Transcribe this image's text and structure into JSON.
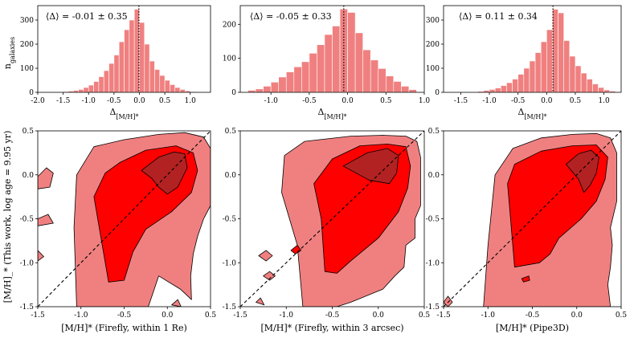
{
  "figure": {
    "shared_ylabel_hist": "n_galaxies",
    "shared_ylabel_contour": "[M/H]_* (This work, log age = 9.95 yr)"
  },
  "colors": {
    "hist_fill": "#f08080",
    "hist_edge": "#ffffff",
    "contour_outer": "#f08080",
    "contour_middle": "#ff0000",
    "contour_inner": "#b22222",
    "contour_line": "#000000"
  },
  "chart_data": [
    {
      "type": "bar",
      "panel": "hist-1",
      "annotation": "⟨Δ⟩ = -0.01 ± 0.35",
      "xlabel": "Δ[M/H]*",
      "ylabel": "n_galaxies",
      "xlim": [
        -2.0,
        1.4
      ],
      "ylim": [
        0,
        360
      ],
      "xticks": [
        "-2.0",
        "-1.5",
        "-1.0",
        "-0.5",
        "0.0",
        "0.5",
        "1.0"
      ],
      "xtick_values": [
        -2.0,
        -1.5,
        -1.0,
        -0.5,
        0.0,
        0.5,
        1.0
      ],
      "yticks": [
        "0",
        "100",
        "200",
        "300"
      ],
      "ytick_values": [
        0,
        100,
        200,
        300
      ],
      "vline": -0.01,
      "bin_edges": [
        -1.5,
        -1.4,
        -1.3,
        -1.2,
        -1.1,
        -1.0,
        -0.9,
        -0.8,
        -0.7,
        -0.6,
        -0.5,
        -0.4,
        -0.3,
        -0.2,
        -0.1,
        0.0,
        0.1,
        0.2,
        0.3,
        0.4,
        0.5,
        0.6,
        0.7,
        0.8,
        0.9,
        1.0,
        1.1
      ],
      "values": [
        3,
        5,
        8,
        12,
        20,
        30,
        45,
        65,
        90,
        120,
        155,
        210,
        260,
        300,
        345,
        290,
        200,
        130,
        95,
        70,
        50,
        32,
        20,
        12,
        6,
        3
      ]
    },
    {
      "type": "bar",
      "panel": "hist-2",
      "annotation": "⟨Δ⟩ = -0.05 ± 0.33",
      "xlabel": "Δ[M/H]*",
      "ylabel": "",
      "xlim": [
        -1.4,
        1.0
      ],
      "ylim": [
        0,
        255
      ],
      "xticks": [
        "-1.0",
        "-0.5",
        "0.0",
        "0.5",
        "1.0"
      ],
      "xtick_values": [
        -1.0,
        -0.5,
        0.0,
        0.5,
        1.0
      ],
      "yticks": [
        "0",
        "100",
        "200"
      ],
      "ytick_values": [
        0,
        100,
        200
      ],
      "vline": -0.05,
      "bin_edges": [
        -1.3,
        -1.2,
        -1.1,
        -1.0,
        -0.9,
        -0.8,
        -0.7,
        -0.6,
        -0.5,
        -0.4,
        -0.3,
        -0.2,
        -0.1,
        0.0,
        0.1,
        0.2,
        0.3,
        0.4,
        0.5,
        0.6,
        0.7,
        0.8,
        0.9
      ],
      "values": [
        6,
        10,
        18,
        30,
        45,
        60,
        75,
        90,
        115,
        140,
        170,
        195,
        245,
        235,
        175,
        125,
        95,
        70,
        48,
        32,
        18,
        8
      ]
    },
    {
      "type": "bar",
      "panel": "hist-3",
      "annotation": "⟨Δ⟩ = 0.11 ± 0.34",
      "xlabel": "Δ[M/H]*",
      "ylabel": "",
      "xlim": [
        -1.8,
        1.3
      ],
      "ylim": [
        0,
        360
      ],
      "xticks": [
        "-1.5",
        "-1.0",
        "-0.5",
        "0.0",
        "0.5",
        "1.0"
      ],
      "xtick_values": [
        -1.5,
        -1.0,
        -0.5,
        0.0,
        0.5,
        1.0
      ],
      "yticks": [
        "0",
        "100",
        "200",
        "300"
      ],
      "ytick_values": [
        0,
        100,
        200,
        300
      ],
      "vline": 0.11,
      "bin_edges": [
        -1.2,
        -1.1,
        -1.0,
        -0.9,
        -0.8,
        -0.7,
        -0.6,
        -0.5,
        -0.4,
        -0.3,
        -0.2,
        -0.1,
        0.0,
        0.1,
        0.2,
        0.3,
        0.4,
        0.5,
        0.6,
        0.7,
        0.8,
        0.9,
        1.0,
        1.1,
        1.2
      ],
      "values": [
        4,
        8,
        12,
        18,
        28,
        40,
        55,
        75,
        100,
        130,
        165,
        210,
        260,
        345,
        330,
        215,
        150,
        110,
        80,
        55,
        35,
        20,
        10,
        5
      ]
    },
    {
      "type": "contour",
      "panel": "contour-1",
      "xlabel": "[M/H]* (Firefly, within 1 Re)",
      "ylabel": "[M/H]* (This work, log age = 9.95 yr)",
      "xlim": [
        -1.5,
        0.5
      ],
      "ylim": [
        -1.5,
        0.5
      ],
      "xticks": [
        "-1.5",
        "-1.0",
        "-0.5",
        "0.0",
        "0.5"
      ],
      "xtick_values": [
        -1.5,
        -1.0,
        -0.5,
        0.0,
        0.5
      ],
      "yticks": [
        "-1.5",
        "-1.0",
        "-0.5",
        "0.0",
        "0.5"
      ],
      "ytick_values": [
        -1.5,
        -1.0,
        -0.5,
        0.0,
        0.5
      ],
      "levels": [
        {
          "name": "outer",
          "polygons": [
            [
              [
                -1.05,
                -1.5
              ],
              [
                -1.08,
                -0.6
              ],
              [
                -1.05,
                0.0
              ],
              [
                -0.85,
                0.32
              ],
              [
                -0.5,
                0.4
              ],
              [
                -0.1,
                0.46
              ],
              [
                0.2,
                0.48
              ],
              [
                0.42,
                0.43
              ],
              [
                0.5,
                0.3
              ],
              [
                0.5,
                -0.35
              ],
              [
                0.42,
                -0.5
              ],
              [
                0.35,
                -0.7
              ],
              [
                0.3,
                -0.9
              ],
              [
                0.27,
                -1.15
              ],
              [
                0.28,
                -1.42
              ],
              [
                0.15,
                -1.3
              ],
              [
                -0.1,
                -1.15
              ],
              [
                -0.22,
                -1.5
              ]
            ],
            [
              [
                -1.5,
                -0.02
              ],
              [
                -1.4,
                0.08
              ],
              [
                -1.32,
                0.02
              ],
              [
                -1.36,
                -0.14
              ],
              [
                -1.5,
                -0.16
              ]
            ],
            [
              [
                -1.5,
                -0.5
              ],
              [
                -1.38,
                -0.45
              ],
              [
                -1.32,
                -0.55
              ],
              [
                -1.5,
                -0.58
              ]
            ],
            [
              [
                -1.5,
                -0.86
              ],
              [
                -1.43,
                -0.93
              ],
              [
                -1.5,
                -0.98
              ]
            ],
            [
              [
                0.05,
                -1.48
              ],
              [
                0.12,
                -1.42
              ],
              [
                0.16,
                -1.5
              ]
            ]
          ]
        },
        {
          "name": "middle",
          "polygons": [
            [
              [
                -0.68,
                -1.22
              ],
              [
                -0.78,
                -0.65
              ],
              [
                -0.85,
                -0.25
              ],
              [
                -0.72,
                0.02
              ],
              [
                -0.55,
                0.14
              ],
              [
                -0.25,
                0.28
              ],
              [
                0.1,
                0.33
              ],
              [
                0.3,
                0.25
              ],
              [
                0.35,
                0.05
              ],
              [
                0.28,
                -0.2
              ],
              [
                0.05,
                -0.42
              ],
              [
                -0.25,
                -0.62
              ],
              [
                -0.4,
                -0.88
              ],
              [
                -0.5,
                -1.2
              ]
            ]
          ]
        },
        {
          "name": "inner",
          "polygons": [
            [
              [
                -0.3,
                0.05
              ],
              [
                -0.1,
                0.2
              ],
              [
                0.08,
                0.26
              ],
              [
                0.2,
                0.24
              ],
              [
                0.23,
                0.08
              ],
              [
                0.12,
                -0.14
              ],
              [
                0.0,
                -0.22
              ],
              [
                -0.1,
                -0.14
              ],
              [
                -0.18,
                -0.04
              ]
            ]
          ]
        }
      ],
      "diagonal": [
        [
          -1.5,
          -1.5
        ],
        [
          0.5,
          0.5
        ]
      ]
    },
    {
      "type": "contour",
      "panel": "contour-2",
      "xlabel": "[M/H]* (Firefly, within 3 arcsec)",
      "ylabel": "",
      "xlim": [
        -1.5,
        0.5
      ],
      "ylim": [
        -1.5,
        0.5
      ],
      "xticks": [
        "-1.5",
        "-1.0",
        "-0.5",
        "0.0",
        "0.5"
      ],
      "xtick_values": [
        -1.5,
        -1.0,
        -0.5,
        0.0,
        0.5
      ],
      "yticks": [
        "-1.5",
        "-1.0",
        "-0.5",
        "0.0",
        "0.5"
      ],
      "ytick_values": [
        -1.5,
        -1.0,
        -0.5,
        0.0,
        0.5
      ],
      "levels": [
        {
          "name": "outer",
          "polygons": [
            [
              [
                -0.82,
                -1.5
              ],
              [
                -0.88,
                -0.8
              ],
              [
                -1.05,
                -0.2
              ],
              [
                -1.02,
                0.22
              ],
              [
                -0.8,
                0.38
              ],
              [
                -0.3,
                0.44
              ],
              [
                0.05,
                0.45
              ],
              [
                0.3,
                0.44
              ],
              [
                0.42,
                0.38
              ],
              [
                0.46,
                0.2
              ],
              [
                0.46,
                -0.35
              ],
              [
                0.4,
                -0.5
              ],
              [
                0.4,
                -0.72
              ],
              [
                0.3,
                -0.8
              ],
              [
                0.28,
                -1.05
              ],
              [
                0.18,
                -1.15
              ],
              [
                0.05,
                -1.3
              ],
              [
                -0.3,
                -1.45
              ],
              [
                -0.45,
                -1.5
              ]
            ],
            [
              [
                -1.3,
                -0.92
              ],
              [
                -1.22,
                -0.86
              ],
              [
                -1.15,
                -0.92
              ],
              [
                -1.22,
                -0.98
              ]
            ],
            [
              [
                -1.25,
                -1.15
              ],
              [
                -1.18,
                -1.1
              ],
              [
                -1.12,
                -1.15
              ],
              [
                -1.18,
                -1.2
              ]
            ],
            [
              [
                -1.33,
                -1.45
              ],
              [
                -1.28,
                -1.4
              ],
              [
                -1.24,
                -1.48
              ]
            ]
          ]
        },
        {
          "name": "middle",
          "polygons": [
            [
              [
                -0.58,
                -1.1
              ],
              [
                -0.62,
                -0.5
              ],
              [
                -0.7,
                -0.1
              ],
              [
                -0.5,
                0.18
              ],
              [
                -0.2,
                0.33
              ],
              [
                0.1,
                0.35
              ],
              [
                0.3,
                0.32
              ],
              [
                0.35,
                0.1
              ],
              [
                0.32,
                -0.15
              ],
              [
                0.22,
                -0.42
              ],
              [
                0.0,
                -0.72
              ],
              [
                -0.3,
                -0.98
              ],
              [
                -0.45,
                -1.12
              ]
            ],
            [
              [
                -0.95,
                -0.86
              ],
              [
                -0.88,
                -0.8
              ],
              [
                -0.84,
                -0.86
              ],
              [
                -0.9,
                -0.9
              ]
            ]
          ]
        },
        {
          "name": "inner",
          "polygons": [
            [
              [
                -0.38,
                0.1
              ],
              [
                -0.12,
                0.25
              ],
              [
                0.1,
                0.3
              ],
              [
                0.22,
                0.22
              ],
              [
                0.2,
                0.02
              ],
              [
                0.12,
                -0.1
              ],
              [
                -0.1,
                -0.06
              ]
            ]
          ]
        }
      ],
      "diagonal": [
        [
          -1.5,
          -1.5
        ],
        [
          0.5,
          0.5
        ]
      ]
    },
    {
      "type": "contour",
      "panel": "contour-3",
      "xlabel": "[M/H]* (Pipe3D)",
      "ylabel": "",
      "xlim": [
        -1.5,
        0.5
      ],
      "ylim": [
        -1.5,
        0.5
      ],
      "xticks": [
        "-1.5",
        "-1.0",
        "-0.5",
        "0.0",
        "0.5"
      ],
      "xtick_values": [
        -1.5,
        -1.0,
        -0.5,
        0.0,
        0.5
      ],
      "yticks": [
        "-1.5",
        "-1.0",
        "-0.5",
        "0.0",
        "0.5"
      ],
      "ytick_values": [
        -1.5,
        -1.0,
        -0.5,
        0.0,
        0.5
      ],
      "levels": [
        {
          "name": "outer",
          "polygons": [
            [
              [
                -1.05,
                -1.5
              ],
              [
                -1.0,
                -0.8
              ],
              [
                -0.92,
                0.0
              ],
              [
                -0.72,
                0.3
              ],
              [
                -0.4,
                0.42
              ],
              [
                -0.05,
                0.46
              ],
              [
                0.22,
                0.47
              ],
              [
                0.38,
                0.42
              ],
              [
                0.45,
                0.25
              ],
              [
                0.45,
                -0.3
              ],
              [
                0.38,
                -0.6
              ],
              [
                0.4,
                -0.8
              ],
              [
                0.38,
                -1.05
              ],
              [
                0.35,
                -1.25
              ],
              [
                0.38,
                -1.5
              ]
            ],
            [
              [
                -1.5,
                -1.45
              ],
              [
                -1.45,
                -1.38
              ],
              [
                -1.4,
                -1.45
              ],
              [
                -1.45,
                -1.5
              ]
            ]
          ]
        },
        {
          "name": "middle",
          "polygons": [
            [
              [
                -0.7,
                -1.05
              ],
              [
                -0.75,
                -0.45
              ],
              [
                -0.78,
                -0.1
              ],
              [
                -0.7,
                0.12
              ],
              [
                -0.4,
                0.27
              ],
              [
                -0.05,
                0.33
              ],
              [
                0.22,
                0.34
              ],
              [
                0.35,
                0.2
              ],
              [
                0.32,
                -0.05
              ],
              [
                0.22,
                -0.3
              ],
              [
                0.05,
                -0.5
              ],
              [
                -0.2,
                -0.72
              ],
              [
                -0.3,
                -0.9
              ],
              [
                -0.42,
                -1.0
              ]
            ],
            [
              [
                -0.62,
                -1.18
              ],
              [
                -0.54,
                -1.15
              ],
              [
                -0.53,
                -1.2
              ],
              [
                -0.6,
                -1.22
              ]
            ]
          ]
        },
        {
          "name": "inner",
          "polygons": [
            [
              [
                -0.12,
                0.12
              ],
              [
                0.02,
                0.24
              ],
              [
                0.16,
                0.28
              ],
              [
                0.25,
                0.2
              ],
              [
                0.22,
                0.02
              ],
              [
                0.15,
                -0.12
              ],
              [
                0.08,
                -0.2
              ],
              [
                0.02,
                -0.05
              ]
            ]
          ]
        }
      ],
      "diagonal": [
        [
          -1.5,
          -1.5
        ],
        [
          0.5,
          0.5
        ]
      ]
    }
  ]
}
